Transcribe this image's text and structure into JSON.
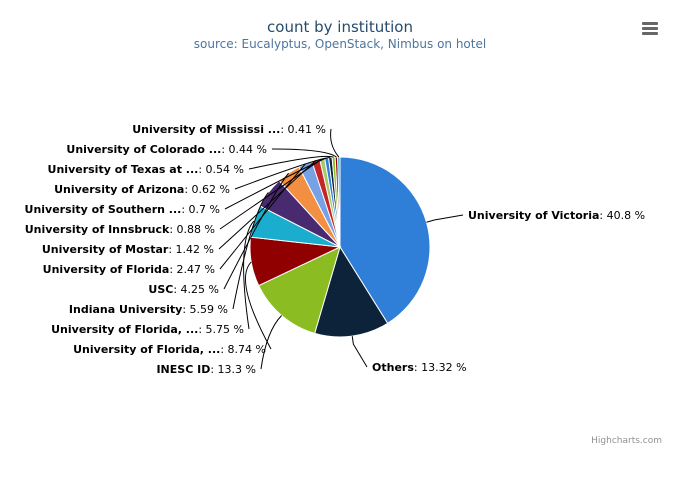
{
  "chart_data": {
    "type": "pie",
    "title": "count by institution",
    "subtitle": "source: Eucalyptus, OpenStack, Nimbus on hotel",
    "slices": [
      {
        "name": "University of Victoria",
        "value": 40.8,
        "color": "#2f7ed8"
      },
      {
        "name": "Others",
        "value": 13.32,
        "color": "#0d233a"
      },
      {
        "name": "INESC ID",
        "value": 13.3,
        "color": "#8bbc21"
      },
      {
        "name": "University of Florida, ...",
        "value": 8.74,
        "color": "#910000"
      },
      {
        "name": "University of Florida, ...",
        "value": 5.75,
        "color": "#1aadce"
      },
      {
        "name": "Indiana University",
        "value": 5.59,
        "color": "#492970"
      },
      {
        "name": "USC",
        "value": 4.25,
        "color": "#f28f43"
      },
      {
        "name": "University of Florida",
        "value": 2.47,
        "color": "#77a1e5"
      },
      {
        "name": "University of Mostar",
        "value": 1.42,
        "color": "#c42525"
      },
      {
        "name": "University of Innsbruck",
        "value": 0.88,
        "color": "#a6c96a"
      },
      {
        "name": "University of Southern ...",
        "value": 0.7,
        "color": "#2f7ed8"
      },
      {
        "name": "University of Arizona",
        "value": 0.62,
        "color": "#0d233a"
      },
      {
        "name": "University of Texas at ...",
        "value": 0.54,
        "color": "#8bbc21"
      },
      {
        "name": "University of Colorado ...",
        "value": 0.44,
        "color": "#910000"
      },
      {
        "name": "University of Mississi ...",
        "value": 0.41,
        "color": "#1aadce"
      }
    ],
    "value_suffix": " %",
    "legend": "none"
  },
  "credits": "Highcharts.com",
  "menu_icon": "hamburger-menu-icon"
}
